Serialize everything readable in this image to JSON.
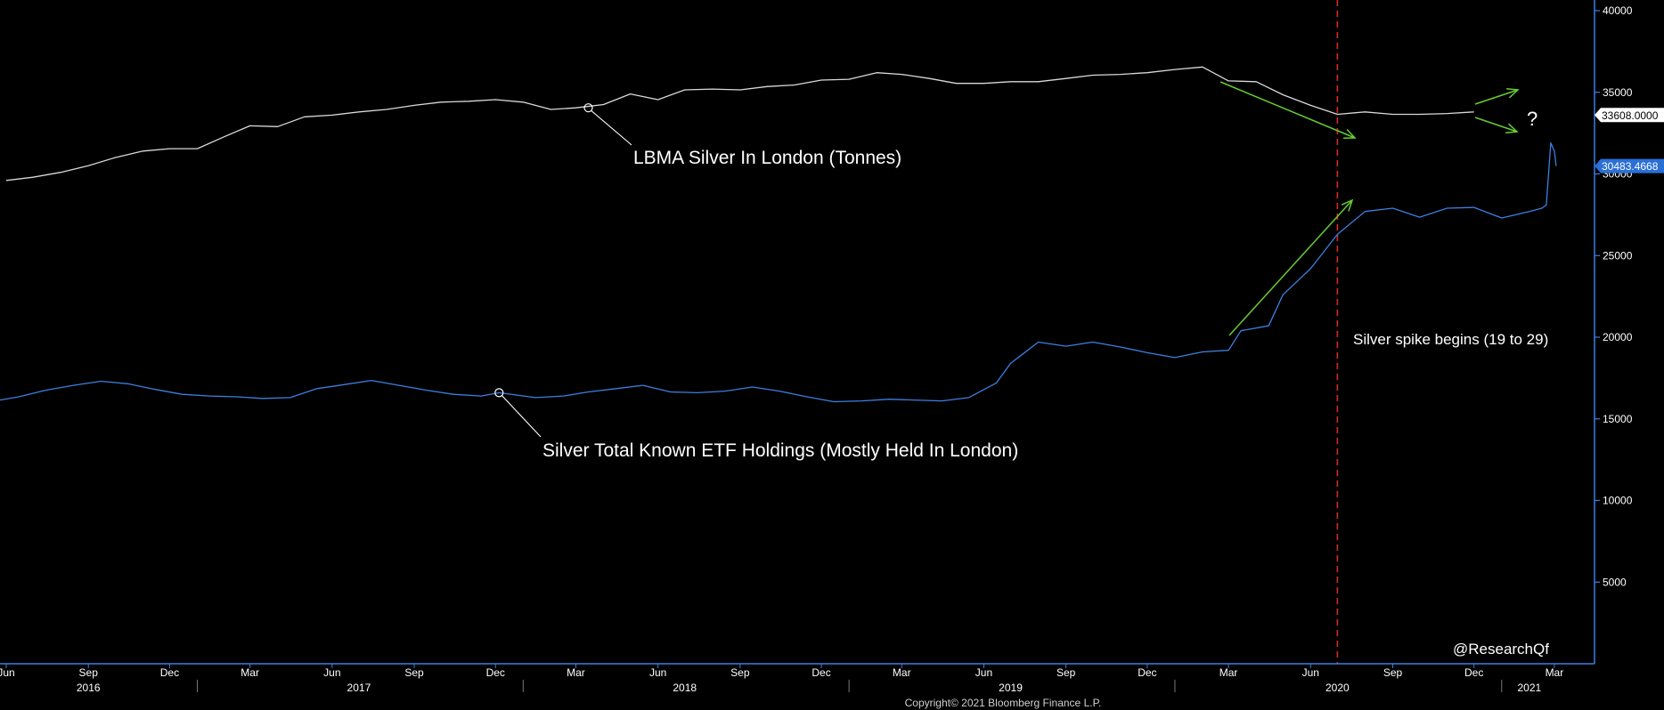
{
  "chart_data": {
    "type": "line",
    "xlim": [
      "2016-05-25",
      "2021-04-15"
    ],
    "ylim": [
      0,
      40000
    ],
    "x_ticks": [
      "2016-06-01",
      "2016-09-01",
      "2016-12-01",
      "2017-03-01",
      "2017-06-01",
      "2017-09-01",
      "2017-12-01",
      "2018-03-01",
      "2018-06-01",
      "2018-09-01",
      "2018-12-01",
      "2019-03-01",
      "2019-06-01",
      "2019-09-01",
      "2019-12-01",
      "2020-03-01",
      "2020-06-01",
      "2020-09-01",
      "2020-12-01",
      "2021-03-01"
    ],
    "x_tick_labels": [
      "Jun",
      "Sep",
      "Dec",
      "Mar",
      "Jun",
      "Sep",
      "Dec",
      "Mar",
      "Jun",
      "Sep",
      "Dec",
      "Mar",
      "Jun",
      "Sep",
      "Dec",
      "Mar",
      "Jun",
      "Sep",
      "Dec",
      "Mar"
    ],
    "year_labels": [
      {
        "label": "2016",
        "x": "2016-09-01"
      },
      {
        "label": "2017",
        "x": "2017-07-01"
      },
      {
        "label": "2018",
        "x": "2018-07-01"
      },
      {
        "label": "2019",
        "x": "2019-07-01"
      },
      {
        "label": "2020",
        "x": "2020-07-01"
      },
      {
        "label": "2021",
        "x": "2021-02-01"
      }
    ],
    "year_dividers": [
      "2017-01-01",
      "2018-01-01",
      "2019-01-01",
      "2020-01-01",
      "2021-01-01"
    ],
    "y_ticks": [
      5000,
      10000,
      15000,
      20000,
      25000,
      30000,
      35000,
      40000
    ],
    "y_tick_labels": [
      "5000",
      "10000",
      "15000",
      "20000",
      "25000",
      "30000",
      "35000",
      "40000"
    ],
    "series": [
      {
        "color": "#d9d9d9",
        "points": [
          [
            "2016-06-01",
            29600
          ],
          [
            "2016-07-01",
            29800
          ],
          [
            "2016-08-01",
            30100
          ],
          [
            "2016-09-01",
            30500
          ],
          [
            "2016-10-01",
            31000
          ],
          [
            "2016-11-01",
            31400
          ],
          [
            "2016-12-01",
            31550
          ],
          [
            "2017-01-01",
            31550
          ],
          [
            "2017-02-01",
            32300
          ],
          [
            "2017-03-01",
            32950
          ],
          [
            "2017-04-01",
            32900
          ],
          [
            "2017-05-01",
            33500
          ],
          [
            "2017-06-01",
            33600
          ],
          [
            "2017-07-01",
            33800
          ],
          [
            "2017-08-01",
            33950
          ],
          [
            "2017-09-01",
            34200
          ],
          [
            "2017-10-01",
            34400
          ],
          [
            "2017-11-01",
            34450
          ],
          [
            "2017-12-01",
            34550
          ],
          [
            "2018-01-01",
            34400
          ],
          [
            "2018-02-01",
            33950
          ],
          [
            "2018-03-01",
            34050
          ],
          [
            "2018-04-01",
            34250
          ],
          [
            "2018-05-01",
            34900
          ],
          [
            "2018-06-01",
            34550
          ],
          [
            "2018-07-01",
            35150
          ],
          [
            "2018-08-01",
            35200
          ],
          [
            "2018-09-01",
            35150
          ],
          [
            "2018-10-01",
            35350
          ],
          [
            "2018-11-01",
            35450
          ],
          [
            "2018-12-01",
            35750
          ],
          [
            "2019-01-01",
            35800
          ],
          [
            "2019-02-01",
            36200
          ],
          [
            "2019-03-01",
            36100
          ],
          [
            "2019-04-01",
            35850
          ],
          [
            "2019-05-01",
            35550
          ],
          [
            "2019-06-01",
            35550
          ],
          [
            "2019-07-01",
            35650
          ],
          [
            "2019-08-01",
            35650
          ],
          [
            "2019-09-01",
            35850
          ],
          [
            "2019-10-01",
            36050
          ],
          [
            "2019-11-01",
            36100
          ],
          [
            "2019-12-01",
            36200
          ],
          [
            "2020-01-01",
            36400
          ],
          [
            "2020-02-01",
            36550
          ],
          [
            "2020-03-01",
            35700
          ],
          [
            "2020-04-01",
            35650
          ],
          [
            "2020-05-01",
            34850
          ],
          [
            "2020-06-01",
            34200
          ],
          [
            "2020-07-01",
            33650
          ],
          [
            "2020-08-01",
            33800
          ],
          [
            "2020-09-01",
            33650
          ],
          [
            "2020-10-01",
            33650
          ],
          [
            "2020-11-01",
            33700
          ],
          [
            "2020-12-01",
            33800
          ]
        ]
      },
      {
        "color": "#3d7fe0",
        "points": [
          [
            "2016-05-25",
            16150
          ],
          [
            "2016-06-15",
            16350
          ],
          [
            "2016-07-15",
            16750
          ],
          [
            "2016-08-15",
            17050
          ],
          [
            "2016-09-15",
            17300
          ],
          [
            "2016-10-15",
            17150
          ],
          [
            "2016-11-15",
            16800
          ],
          [
            "2016-12-15",
            16500
          ],
          [
            "2017-01-15",
            16400
          ],
          [
            "2017-02-15",
            16350
          ],
          [
            "2017-03-15",
            16250
          ],
          [
            "2017-04-15",
            16300
          ],
          [
            "2017-05-15",
            16850
          ],
          [
            "2017-06-15",
            17100
          ],
          [
            "2017-07-15",
            17350
          ],
          [
            "2017-08-15",
            17050
          ],
          [
            "2017-09-15",
            16750
          ],
          [
            "2017-10-15",
            16500
          ],
          [
            "2017-11-15",
            16400
          ],
          [
            "2017-12-05",
            16600
          ],
          [
            "2018-01-15",
            16300
          ],
          [
            "2018-02-15",
            16400
          ],
          [
            "2018-03-15",
            16650
          ],
          [
            "2018-04-15",
            16850
          ],
          [
            "2018-05-15",
            17050
          ],
          [
            "2018-06-15",
            16650
          ],
          [
            "2018-07-15",
            16600
          ],
          [
            "2018-08-15",
            16700
          ],
          [
            "2018-09-15",
            16950
          ],
          [
            "2018-10-15",
            16700
          ],
          [
            "2018-11-15",
            16350
          ],
          [
            "2018-12-15",
            16050
          ],
          [
            "2019-01-15",
            16100
          ],
          [
            "2019-02-15",
            16200
          ],
          [
            "2019-03-15",
            16150
          ],
          [
            "2019-04-15",
            16100
          ],
          [
            "2019-05-15",
            16300
          ],
          [
            "2019-06-15",
            17200
          ],
          [
            "2019-07-01",
            18400
          ],
          [
            "2019-08-01",
            19700
          ],
          [
            "2019-09-01",
            19450
          ],
          [
            "2019-10-01",
            19700
          ],
          [
            "2019-11-01",
            19400
          ],
          [
            "2019-12-01",
            19050
          ],
          [
            "2020-01-01",
            18750
          ],
          [
            "2020-02-01",
            19100
          ],
          [
            "2020-03-01",
            19200
          ],
          [
            "2020-03-15",
            20400
          ],
          [
            "2020-04-15",
            20700
          ],
          [
            "2020-05-01",
            22600
          ],
          [
            "2020-06-01",
            24200
          ],
          [
            "2020-07-01",
            26300
          ],
          [
            "2020-08-01",
            27700
          ],
          [
            "2020-09-01",
            27900
          ],
          [
            "2020-10-01",
            27350
          ],
          [
            "2020-11-01",
            27900
          ],
          [
            "2020-12-01",
            27950
          ],
          [
            "2021-01-01",
            27300
          ],
          [
            "2021-02-01",
            27700
          ],
          [
            "2021-02-15",
            27900
          ],
          [
            "2021-02-20",
            28100
          ],
          [
            "2021-02-25",
            31900
          ],
          [
            "2021-03-01",
            31400
          ],
          [
            "2021-03-03",
            30483
          ]
        ]
      }
    ],
    "last_values": [
      {
        "label": "33608.0000",
        "value": 33608,
        "series": 0
      },
      {
        "label": "30483.4668",
        "value": 30483,
        "series": 1
      }
    ],
    "annotations": {
      "lbma_label": "LBMA Silver In London (Tonnes)",
      "etf_label": "Silver Total Known ETF Holdings (Mostly Held In London)",
      "spike_label": "Silver spike begins (19 to 29)",
      "question_mark": "?",
      "vline_date": "2020-07-01",
      "watermark": "@ResearchQf",
      "copyright": "Copyright© 2021 Bloomberg Finance L.P."
    },
    "colors": {
      "background": "#000000",
      "axis": "#3d7fe0",
      "lbma_line": "#d9d9d9",
      "etf_line": "#3d7fe0",
      "arrow": "#66cc33",
      "vline": "#d62a2a",
      "text": "#ffffff"
    }
  }
}
